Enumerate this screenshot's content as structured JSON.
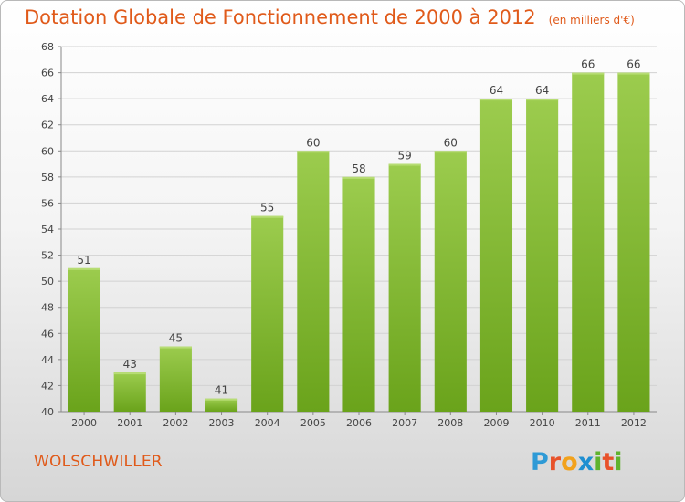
{
  "header": {
    "title": "Dotation Globale de Fonctionnement de 2000 à 2012",
    "unit": "(en milliers d'€)"
  },
  "footer": {
    "commune": "WOLSCHWILLER",
    "logo_letters": [
      {
        "ch": "P",
        "color": "#2e9ad6"
      },
      {
        "ch": "r",
        "color": "#e8522a"
      },
      {
        "ch": "o",
        "color": "#f2a21c"
      },
      {
        "ch": "x",
        "color": "#1f8fd1"
      },
      {
        "ch": "i",
        "color": "#5fb32e"
      },
      {
        "ch": "t",
        "color": "#e8522a"
      },
      {
        "ch": "i",
        "color": "#5fb32e"
      }
    ]
  },
  "colors": {
    "bar_top": "#9ccc4e",
    "bar_bottom": "#6aa31b",
    "accent": "#e05a1a"
  },
  "chart_data": {
    "type": "bar",
    "categories": [
      "2000",
      "2001",
      "2002",
      "2003",
      "2004",
      "2005",
      "2006",
      "2007",
      "2008",
      "2009",
      "2010",
      "2011",
      "2012"
    ],
    "values": [
      51,
      43,
      45,
      41,
      55,
      60,
      58,
      59,
      60,
      64,
      64,
      66,
      66
    ],
    "title": "Dotation Globale de Fonctionnement de 2000 à 2012",
    "xlabel": "",
    "ylabel": "",
    "ylim": [
      40,
      68
    ],
    "yticks": [
      40,
      42,
      44,
      46,
      48,
      50,
      52,
      54,
      56,
      58,
      60,
      62,
      64,
      66,
      68
    ],
    "grid": true,
    "legend": "none"
  }
}
